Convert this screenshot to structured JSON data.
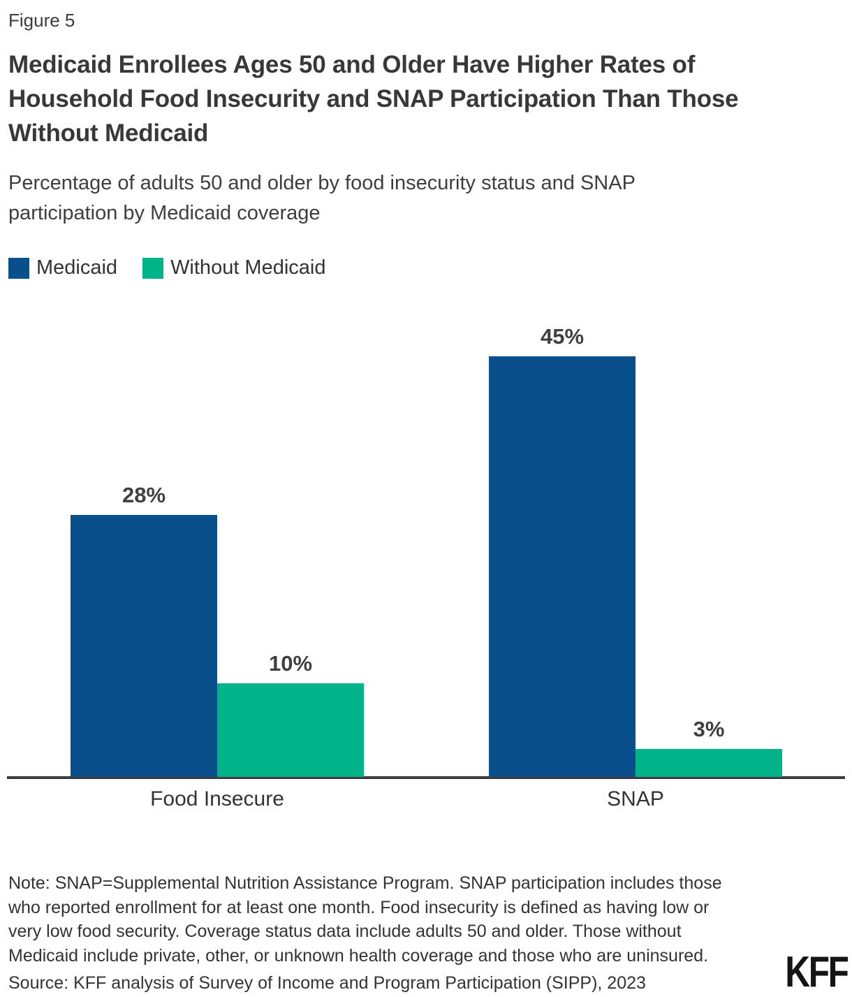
{
  "figure_label": "Figure 5",
  "title": "Medicaid Enrollees Ages 50 and Older Have Higher Rates of Household Food Insecurity and SNAP Participation Than Those Without Medicaid",
  "subtitle": "Percentage of adults 50 and older by food insecurity status and SNAP participation by Medicaid coverage",
  "colors": {
    "medicaid_blue": "#08508C",
    "without_medicaid_teal": "#00B388",
    "axis": "#3b3b3b"
  },
  "legend": {
    "items": [
      {
        "label": "Medicaid",
        "color": "#08508C"
      },
      {
        "label": "Without Medicaid",
        "color": "#00B388"
      }
    ]
  },
  "chart_data": {
    "type": "bar",
    "categories": [
      "Food Insecure",
      "SNAP"
    ],
    "series": [
      {
        "name": "Medicaid",
        "color": "#08508C",
        "values": [
          28,
          45
        ]
      },
      {
        "name": "Without Medicaid",
        "color": "#00B388",
        "values": [
          10,
          3
        ]
      }
    ],
    "value_label_format": "percent",
    "value_labels": [
      [
        "28%",
        "45%"
      ],
      [
        "10%",
        "3%"
      ]
    ],
    "unit": "%",
    "ylim": [
      0,
      51
    ],
    "grid": false,
    "y_axis_shown": false,
    "legend_position": "top-left"
  },
  "note": {
    "lines": [
      "Note: SNAP=Supplemental Nutrition Assistance Program. SNAP participation includes those",
      "who reported enrollment for at least one month. Food insecurity is defined as having low or",
      "very low food security. Coverage status data include adults 50 and older. Those without",
      "Medicaid include private, other, or unknown health coverage and those who are uninsured."
    ]
  },
  "source": "Source: KFF analysis of Survey of Income and Program Participation (SIPP), 2023",
  "logo_text": "KFF"
}
